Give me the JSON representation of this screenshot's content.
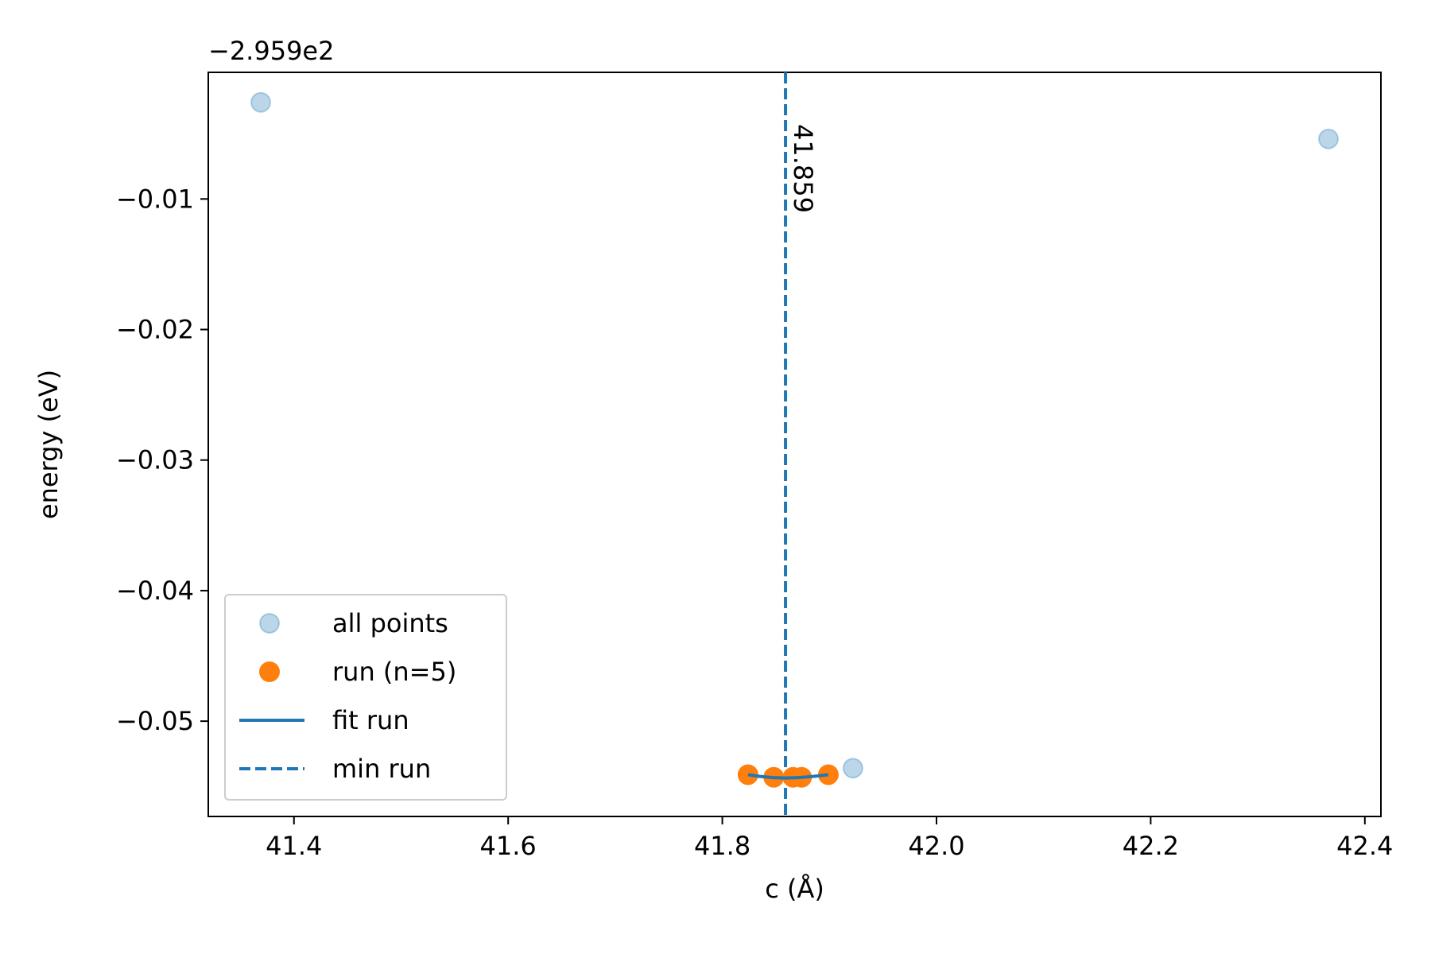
{
  "chart_data": {
    "type": "scatter",
    "title": "",
    "xlabel": "c (Å)",
    "ylabel": "energy (eV)",
    "y_offset_label": "−2.959e2",
    "xlim": [
      41.32,
      42.415
    ],
    "ylim": [
      -0.0573,
      -0.0003
    ],
    "x_ticks": [
      41.4,
      41.6,
      41.8,
      42.0,
      42.2,
      42.4
    ],
    "x_tick_labels": [
      "41.4",
      "41.6",
      "41.8",
      "42.0",
      "42.2",
      "42.4"
    ],
    "y_ticks": [
      -0.01,
      -0.02,
      -0.03,
      -0.04,
      -0.05
    ],
    "y_tick_labels": [
      "−0.01",
      "−0.02",
      "−0.03",
      "−0.04",
      "−0.05"
    ],
    "grid": false,
    "legend_position": "lower-left",
    "series": [
      {
        "name": "all points",
        "kind": "scatter",
        "color": "#1f77b4",
        "points": [
          {
            "x": 41.369,
            "y": -0.0026
          },
          {
            "x": 41.922,
            "y": -0.0536
          },
          {
            "x": 42.366,
            "y": -0.0054
          }
        ]
      },
      {
        "name": "run (n=5)",
        "kind": "scatter",
        "color": "#ff7f0e",
        "points": [
          {
            "x": 41.824,
            "y": -0.0541
          },
          {
            "x": 41.848,
            "y": -0.0543
          },
          {
            "x": 41.866,
            "y": -0.0543
          },
          {
            "x": 41.874,
            "y": -0.0543
          },
          {
            "x": 41.899,
            "y": -0.0541
          }
        ]
      },
      {
        "name": "fit run",
        "kind": "line",
        "color": "#1f77b4",
        "points": [
          {
            "x": 41.824,
            "y": -0.0541
          },
          {
            "x": 41.835,
            "y": -0.05423
          },
          {
            "x": 41.847,
            "y": -0.05432
          },
          {
            "x": 41.859,
            "y": -0.05435
          },
          {
            "x": 41.871,
            "y": -0.05432
          },
          {
            "x": 41.885,
            "y": -0.05423
          },
          {
            "x": 41.899,
            "y": -0.0541
          }
        ]
      },
      {
        "name": "min run",
        "kind": "vline",
        "color": "#1f77b4",
        "x": 41.859
      }
    ],
    "annotations": [
      {
        "text": "41.859",
        "x": 41.859,
        "orientation": "vertical"
      }
    ]
  }
}
